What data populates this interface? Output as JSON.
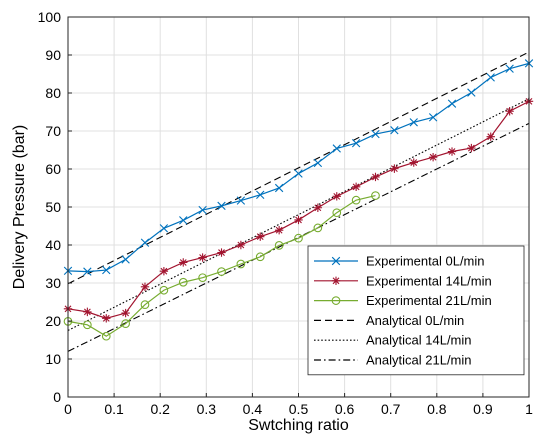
{
  "chart_data": {
    "type": "line",
    "title": "",
    "xlabel": "Swtching ratio",
    "ylabel": "Delivery Pressure (bar)",
    "xlim": [
      0,
      1
    ],
    "ylim": [
      0,
      100
    ],
    "xticks": [
      "0",
      "0.1",
      "0.2",
      "0.3",
      "0.4",
      "0.5",
      "0.6",
      "0.7",
      "0.8",
      "0.9",
      "1"
    ],
    "yticks": [
      "0",
      "10",
      "20",
      "30",
      "40",
      "50",
      "60",
      "70",
      "80",
      "90",
      "100"
    ],
    "grid": true,
    "legend_position": "bottom-right",
    "series": [
      {
        "name": "Experimental 0L/min",
        "color": "#0072BD",
        "marker": "x",
        "line": "solid",
        "points": [
          [
            0,
            33.2
          ],
          [
            0.042,
            33
          ],
          [
            0.083,
            33.4
          ],
          [
            0.125,
            36.2
          ],
          [
            0.167,
            40.6
          ],
          [
            0.208,
            44.4
          ],
          [
            0.25,
            46.5
          ],
          [
            0.292,
            49.2
          ],
          [
            0.333,
            50.3
          ],
          [
            0.375,
            51.7
          ],
          [
            0.417,
            53.2
          ],
          [
            0.458,
            55
          ],
          [
            0.5,
            58.8
          ],
          [
            0.542,
            61.6
          ],
          [
            0.583,
            65.4
          ],
          [
            0.625,
            66.8
          ],
          [
            0.667,
            69.2
          ],
          [
            0.708,
            70.2
          ],
          [
            0.75,
            72.3
          ],
          [
            0.792,
            73.6
          ],
          [
            0.833,
            77.2
          ],
          [
            0.875,
            80.1
          ],
          [
            0.917,
            84.1
          ],
          [
            0.958,
            86.4
          ],
          [
            1,
            87.8
          ]
        ]
      },
      {
        "name": "Experimental 14L/min",
        "color": "#A2142F",
        "marker": "asterisk",
        "line": "solid",
        "points": [
          [
            0,
            23.2
          ],
          [
            0.042,
            22.4
          ],
          [
            0.083,
            20.7
          ],
          [
            0.125,
            22.1
          ],
          [
            0.167,
            29
          ],
          [
            0.208,
            33.1
          ],
          [
            0.25,
            35.4
          ],
          [
            0.292,
            36.7
          ],
          [
            0.333,
            38
          ],
          [
            0.375,
            40
          ],
          [
            0.417,
            42.2
          ],
          [
            0.458,
            43.9
          ],
          [
            0.5,
            46.6
          ],
          [
            0.542,
            49.8
          ],
          [
            0.583,
            52.8
          ],
          [
            0.625,
            55.3
          ],
          [
            0.667,
            57.9
          ],
          [
            0.708,
            60.1
          ],
          [
            0.75,
            61.7
          ],
          [
            0.792,
            63.1
          ],
          [
            0.833,
            64.6
          ],
          [
            0.875,
            65.5
          ],
          [
            0.917,
            68.5
          ],
          [
            0.958,
            75.2
          ],
          [
            1,
            77.8
          ]
        ]
      },
      {
        "name": "Experimental 21L/min",
        "color": "#77AC30",
        "marker": "circle",
        "line": "solid",
        "points": [
          [
            0,
            19.9
          ],
          [
            0.042,
            19
          ],
          [
            0.083,
            16
          ],
          [
            0.125,
            19.3
          ],
          [
            0.167,
            24.3
          ],
          [
            0.208,
            28.1
          ],
          [
            0.25,
            30.2
          ],
          [
            0.292,
            31.4
          ],
          [
            0.333,
            33
          ],
          [
            0.375,
            35
          ],
          [
            0.417,
            36.9
          ],
          [
            0.458,
            39.9
          ],
          [
            0.5,
            41.8
          ],
          [
            0.542,
            44.5
          ],
          [
            0.583,
            48.5
          ],
          [
            0.625,
            51.8
          ],
          [
            0.667,
            53
          ]
        ]
      },
      {
        "name": "Analytical 0L/min",
        "color": "#000000",
        "marker": "none",
        "line": "dashed",
        "points": [
          [
            0,
            29.8
          ],
          [
            1,
            90.8
          ]
        ]
      },
      {
        "name": "Analytical 14L/min",
        "color": "#000000",
        "marker": "none",
        "line": "dotted",
        "points": [
          [
            0,
            17.5
          ],
          [
            1,
            78.5
          ]
        ]
      },
      {
        "name": "Analytical 21L/min",
        "color": "#000000",
        "marker": "none",
        "line": "dashdot",
        "points": [
          [
            0,
            12
          ],
          [
            1,
            72
          ]
        ]
      }
    ]
  }
}
